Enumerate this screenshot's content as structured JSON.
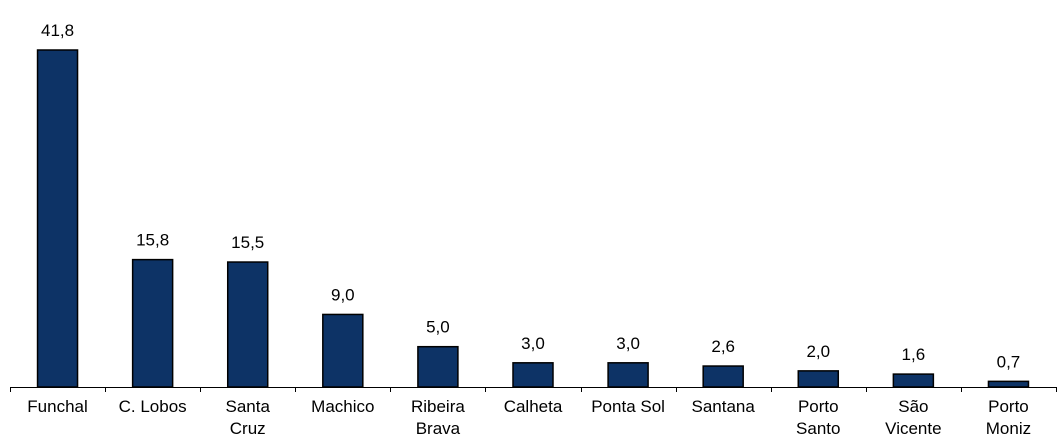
{
  "chart_data": {
    "type": "bar",
    "title": "",
    "xlabel": "",
    "ylabel": "",
    "categories": [
      [
        "Funchal"
      ],
      [
        "C. Lobos"
      ],
      [
        "Santa",
        "Cruz"
      ],
      [
        "Machico"
      ],
      [
        "Ribeira",
        "Brava"
      ],
      [
        "Calheta"
      ],
      [
        "Ponta Sol"
      ],
      [
        "Santana"
      ],
      [
        "Porto",
        "Santo"
      ],
      [
        "São",
        "Vicente"
      ],
      [
        "Porto",
        "Moniz"
      ]
    ],
    "values": [
      41.8,
      15.8,
      15.5,
      9.0,
      5.0,
      3.0,
      3.0,
      2.6,
      2.0,
      1.6,
      0.7
    ],
    "value_labels": [
      "41,8",
      "15,8",
      "15,5",
      "9,0",
      "5,0",
      "3,0",
      "3,0",
      "2,6",
      "2,0",
      "1,6",
      "0,7"
    ],
    "ylim": [
      0,
      41.8
    ],
    "grid": false,
    "legend": "none",
    "bar_color": "#0d3366",
    "bar_edge_color": "#000000",
    "axis_color": "#000000"
  }
}
